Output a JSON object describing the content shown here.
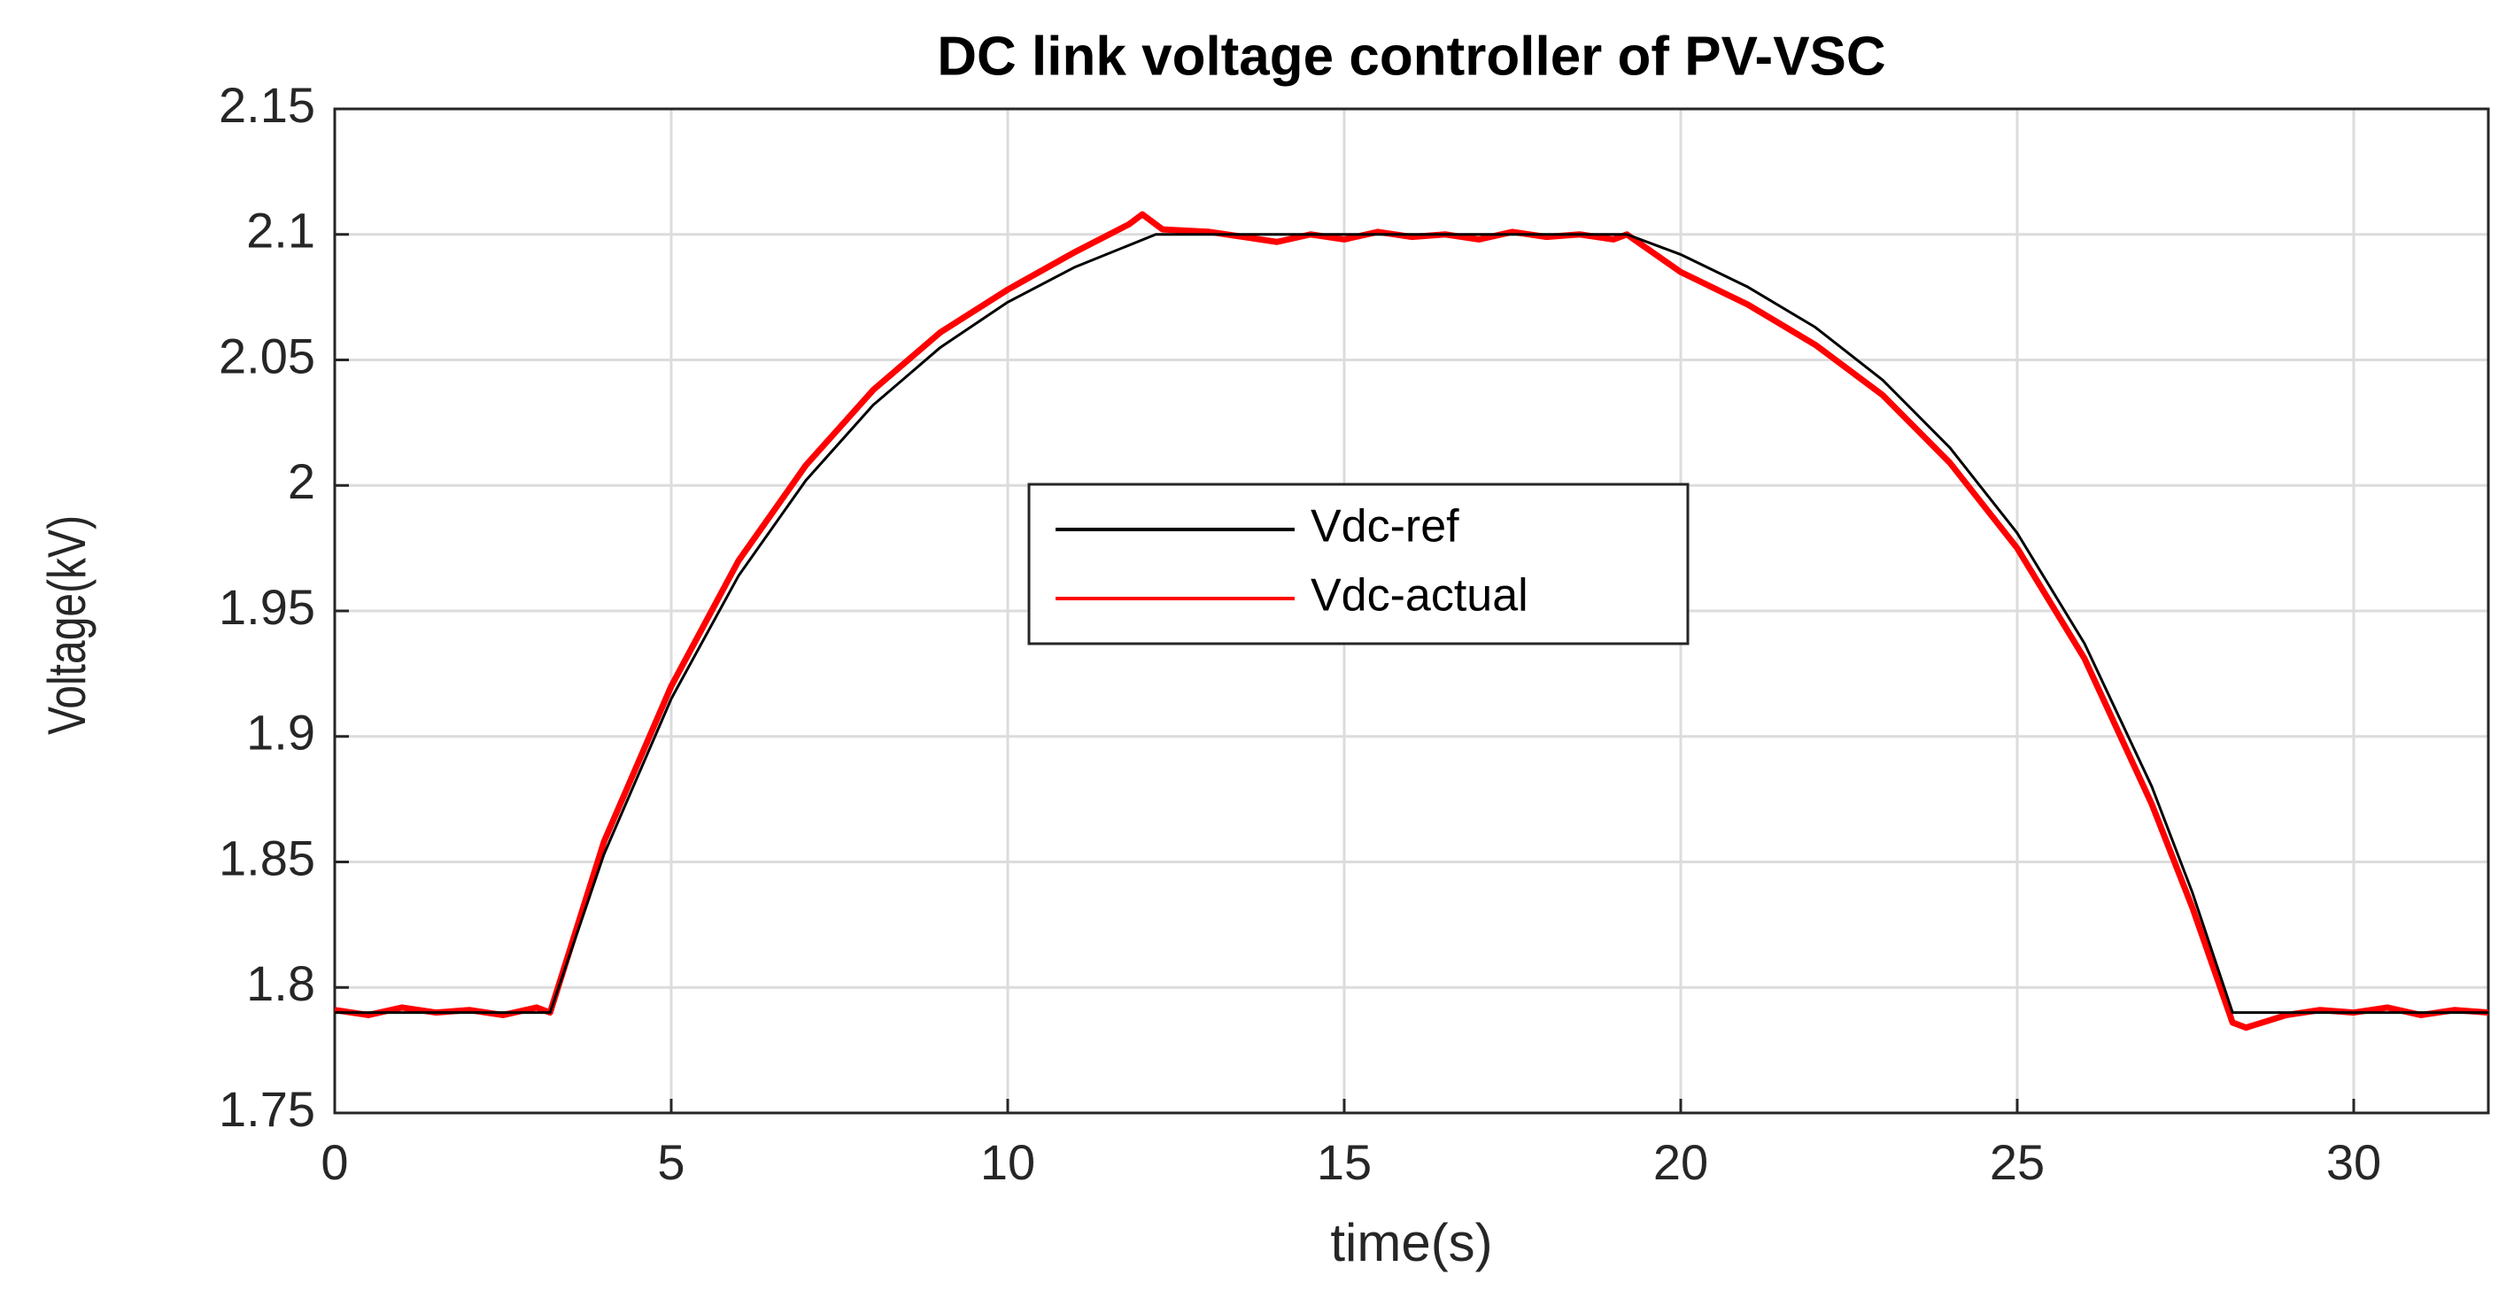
{
  "chart_data": {
    "type": "line",
    "title": "DC link voltage controller of PV-VSC",
    "xlabel": "time(s)",
    "ylabel": "Voltage(kV)",
    "xlim": [
      0,
      32
    ],
    "xticks": [
      0,
      5,
      10,
      15,
      20,
      25,
      30
    ],
    "ylim": [
      1.75,
      2.15
    ],
    "yticks": [
      1.75,
      1.8,
      1.85,
      1.9,
      1.95,
      2,
      2.05,
      2.1,
      2.15
    ],
    "grid": true,
    "legend_position": "center",
    "series": [
      {
        "name": "Vdc-ref",
        "color": "#000000",
        "width": 3,
        "x": [
          0,
          3.2,
          4,
          5,
          6,
          7,
          8,
          9,
          10,
          11,
          12.2,
          19.2,
          20,
          21,
          22,
          23,
          24,
          25,
          26,
          27,
          27.6,
          28.2,
          32
        ],
        "values": [
          1.79,
          1.79,
          1.853,
          1.915,
          1.964,
          2.002,
          2.032,
          2.055,
          2.073,
          2.087,
          2.1,
          2.1,
          2.092,
          2.079,
          2.063,
          2.042,
          2.015,
          1.981,
          1.937,
          1.88,
          1.838,
          1.79,
          1.79
        ]
      },
      {
        "name": "Vdc-actual",
        "color": "#ff0000",
        "width": 7,
        "x": [
          0,
          0.5,
          1,
          1.5,
          2,
          2.5,
          3,
          3.2,
          4,
          5,
          6,
          7,
          8,
          9,
          10,
          11,
          11.8,
          12,
          12.3,
          13,
          13.5,
          14,
          14.5,
          15,
          15.5,
          16,
          16.5,
          17,
          17.5,
          18,
          18.5,
          19,
          19.2,
          20,
          21,
          22,
          23,
          24,
          25,
          26,
          27,
          27.6,
          28.2,
          28.4,
          29,
          29.5,
          30,
          30.5,
          31,
          31.5,
          32
        ],
        "values": [
          1.791,
          1.789,
          1.792,
          1.79,
          1.791,
          1.789,
          1.792,
          1.79,
          1.858,
          1.92,
          1.97,
          2.008,
          2.038,
          2.061,
          2.078,
          2.093,
          2.104,
          2.108,
          2.102,
          2.101,
          2.099,
          2.097,
          2.1,
          2.098,
          2.101,
          2.099,
          2.1,
          2.098,
          2.101,
          2.099,
          2.1,
          2.098,
          2.1,
          2.085,
          2.072,
          2.056,
          2.036,
          2.009,
          1.975,
          1.931,
          1.873,
          1.832,
          1.786,
          1.784,
          1.789,
          1.791,
          1.79,
          1.792,
          1.789,
          1.791,
          1.79
        ]
      }
    ]
  }
}
